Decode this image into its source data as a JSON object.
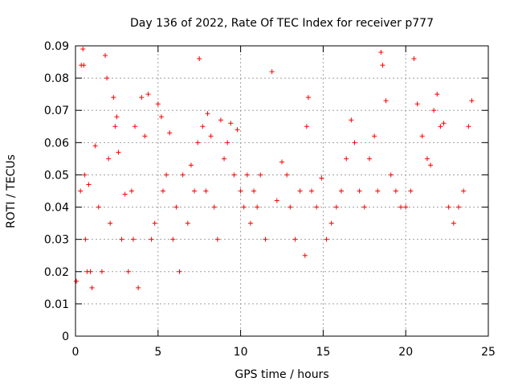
{
  "chart_data": {
    "type": "scatter",
    "title": "Day 136 of 2022, Rate Of TEC Index for receiver p777",
    "xlabel": "GPS time / hours",
    "ylabel": "ROTI / TECUs",
    "xlim": [
      0,
      25
    ],
    "ylim": [
      0,
      0.09
    ],
    "x_ticks": [
      "0",
      "5",
      "10",
      "15",
      "20",
      "25"
    ],
    "y_ticks": [
      "0",
      "0.01",
      "0.02",
      "0.03",
      "0.04",
      "0.05",
      "0.06",
      "0.07",
      "0.08",
      "0.09"
    ],
    "grid": true,
    "marker": "+",
    "color": "#ff0000",
    "series": [
      {
        "x": [
          0.05,
          0.3,
          0.35,
          0.45,
          0.5,
          0.55,
          0.6,
          0.7,
          0.8,
          0.9,
          1.0,
          1.2,
          1.4,
          1.6,
          1.8,
          1.9,
          2.0,
          2.1,
          2.3,
          2.4,
          2.5,
          2.6,
          2.8,
          3.0,
          3.2,
          3.4,
          3.5,
          3.6,
          3.8,
          4.0,
          4.2,
          4.4,
          4.6,
          4.8,
          5.0,
          5.2,
          5.3,
          5.5,
          5.7,
          5.9,
          6.1,
          6.3,
          6.5,
          6.8,
          7.0,
          7.2,
          7.4,
          7.5,
          7.7,
          7.9,
          8.0,
          8.2,
          8.4,
          8.6,
          8.8,
          9.0,
          9.2,
          9.4,
          9.6,
          9.8,
          10.0,
          10.2,
          10.4,
          10.6,
          10.8,
          11.0,
          11.2,
          11.5,
          11.9,
          12.2,
          12.5,
          12.8,
          13.0,
          13.3,
          13.6,
          13.9,
          14.0,
          14.1,
          14.3,
          14.6,
          14.9,
          15.2,
          15.5,
          15.8,
          16.1,
          16.4,
          16.7,
          16.9,
          17.2,
          17.5,
          17.8,
          18.1,
          18.3,
          18.5,
          18.6,
          18.8,
          19.1,
          19.4,
          19.7,
          20.0,
          20.3,
          20.5,
          20.7,
          21.0,
          21.3,
          21.5,
          21.7,
          21.9,
          22.1,
          22.3,
          22.6,
          22.9,
          23.2,
          23.5,
          23.8,
          24.0
        ],
        "y": [
          0.017,
          0.045,
          0.084,
          0.089,
          0.084,
          0.05,
          0.03,
          0.02,
          0.047,
          0.02,
          0.015,
          0.059,
          0.04,
          0.02,
          0.087,
          0.08,
          0.055,
          0.035,
          0.074,
          0.065,
          0.068,
          0.057,
          0.03,
          0.044,
          0.02,
          0.045,
          0.03,
          0.065,
          0.015,
          0.074,
          0.062,
          0.075,
          0.03,
          0.035,
          0.072,
          0.068,
          0.045,
          0.05,
          0.063,
          0.03,
          0.04,
          0.02,
          0.05,
          0.035,
          0.053,
          0.045,
          0.06,
          0.086,
          0.065,
          0.045,
          0.069,
          0.062,
          0.04,
          0.03,
          0.067,
          0.055,
          0.06,
          0.066,
          0.05,
          0.064,
          0.045,
          0.04,
          0.05,
          0.035,
          0.045,
          0.04,
          0.05,
          0.03,
          0.082,
          0.042,
          0.054,
          0.05,
          0.04,
          0.03,
          0.045,
          0.025,
          0.065,
          0.074,
          0.045,
          0.04,
          0.049,
          0.03,
          0.035,
          0.04,
          0.045,
          0.055,
          0.067,
          0.06,
          0.045,
          0.04,
          0.055,
          0.062,
          0.045,
          0.088,
          0.084,
          0.073,
          0.05,
          0.045,
          0.04,
          0.04,
          0.045,
          0.086,
          0.072,
          0.062,
          0.055,
          0.053,
          0.07,
          0.075,
          0.065,
          0.066,
          0.04,
          0.035,
          0.04,
          0.045,
          0.065,
          0.073
        ]
      }
    ]
  }
}
